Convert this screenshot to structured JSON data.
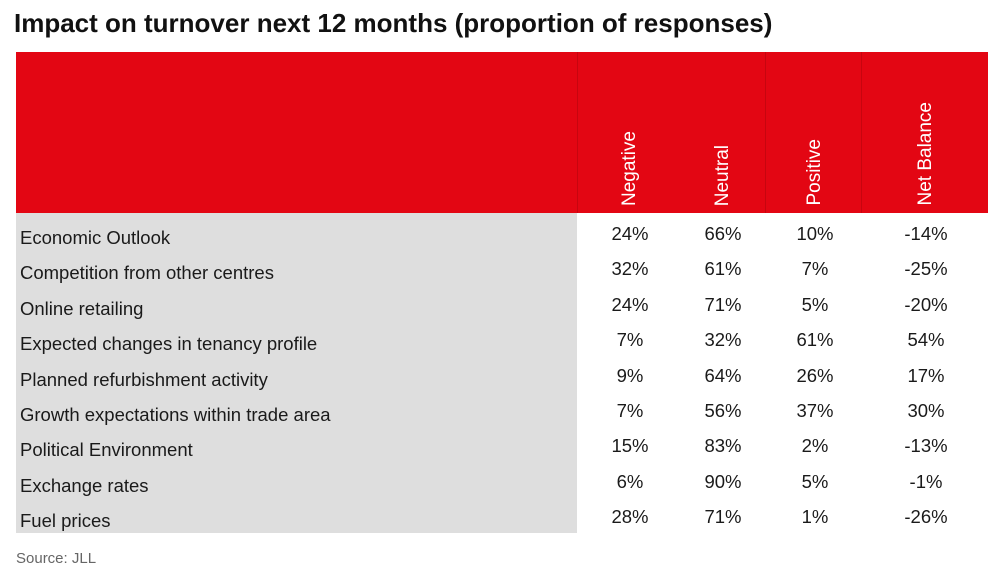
{
  "title": "Impact on turnover next 12 months (proportion of responses)",
  "source": "Source: JLL",
  "colors": {
    "header": "#e30613",
    "label_column": "#dedede"
  },
  "chart_data": {
    "type": "table",
    "columns": [
      "Negative",
      "Neutral",
      "Positive",
      "Net Balance"
    ],
    "rows": [
      {
        "label": "Economic Outlook",
        "values": [
          "24%",
          "66%",
          "10%",
          "-14%"
        ]
      },
      {
        "label": "Competition from other centres",
        "values": [
          "32%",
          "61%",
          "7%",
          "-25%"
        ]
      },
      {
        "label": "Online retailing",
        "values": [
          "24%",
          "71%",
          "5%",
          "-20%"
        ]
      },
      {
        "label": "Expected changes in tenancy profile",
        "values": [
          "7%",
          "32%",
          "61%",
          "54%"
        ]
      },
      {
        "label": "Planned refurbishment activity",
        "values": [
          "9%",
          "64%",
          "26%",
          "17%"
        ]
      },
      {
        "label": "Growth expectations within trade area",
        "values": [
          "7%",
          "56%",
          "37%",
          "30%"
        ]
      },
      {
        "label": "Political Environment",
        "values": [
          "15%",
          "83%",
          "2%",
          "-13%"
        ]
      },
      {
        "label": "Exchange rates",
        "values": [
          "6%",
          "90%",
          "5%",
          "-1%"
        ]
      },
      {
        "label": "Fuel prices",
        "values": [
          "28%",
          "71%",
          "1%",
          "-26%"
        ]
      }
    ]
  }
}
